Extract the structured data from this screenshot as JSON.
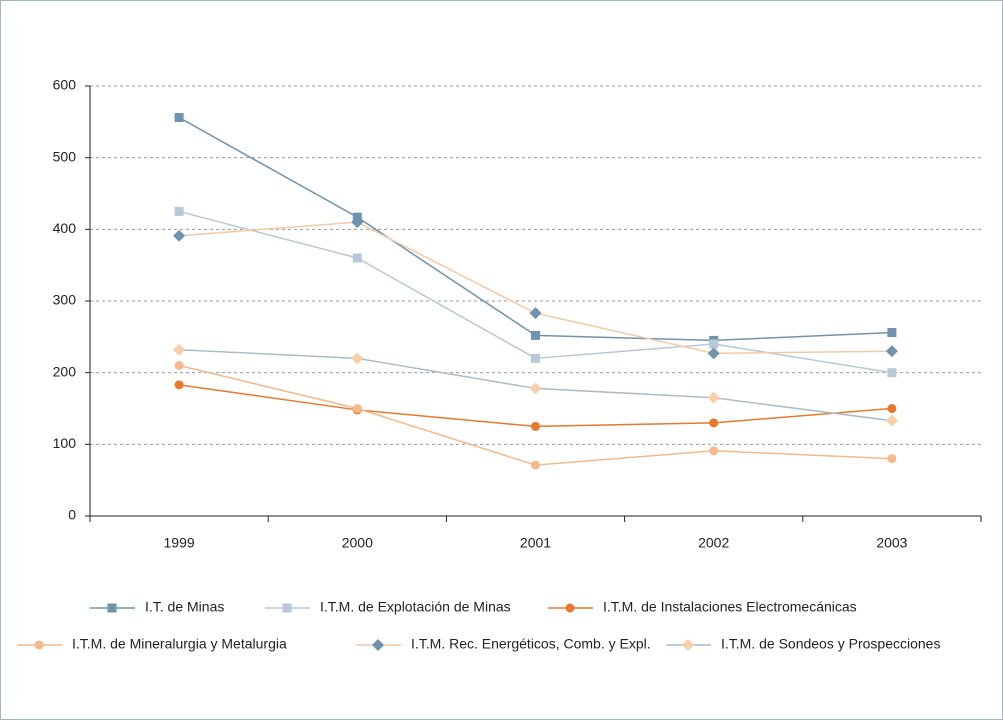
{
  "chart_data": {
    "type": "line",
    "categories": [
      "1999",
      "2000",
      "2001",
      "2002",
      "2003"
    ],
    "series": [
      {
        "name": "I.T. de Minas",
        "color": "#6f93ad",
        "marker": "square",
        "marker_color": "#6f93ad",
        "values": [
          556,
          417,
          252,
          245,
          256
        ]
      },
      {
        "name": "I.T.M. de Explotación de Minas",
        "color": "#b7c9d8",
        "marker": "square",
        "marker_color": "#b7c9d8",
        "values": [
          425,
          360,
          220,
          240,
          200
        ]
      },
      {
        "name": "I.T.M. de Instalaciones Electromecánicas",
        "color": "#e8782a",
        "marker": "circle",
        "marker_color": "#e8782a",
        "values": [
          183,
          148,
          125,
          130,
          150
        ]
      },
      {
        "name": "I.T.M. de Mineralurgia y Metalurgia",
        "color": "#f5b98a",
        "marker": "circle",
        "marker_color": "#f5b98a",
        "values": [
          210,
          150,
          71,
          91,
          80
        ]
      },
      {
        "name": "I.T.M. Rec. Energéticos, Comb. y Expl.",
        "color": "#f5c9a4",
        "marker": "diamond",
        "marker_color": "#6f93ad",
        "values": [
          391,
          410,
          283,
          227,
          230
        ]
      },
      {
        "name": "I.T.M. de Sondeos y Prospecciones",
        "color": "#a9bccb",
        "marker": "diamond",
        "marker_color": "#f8cfa8",
        "values": [
          232,
          220,
          178,
          165,
          133
        ]
      }
    ],
    "ylim": [
      0,
      600
    ],
    "yticks": [
      0,
      100,
      200,
      300,
      400,
      500,
      600
    ],
    "grid": true
  }
}
